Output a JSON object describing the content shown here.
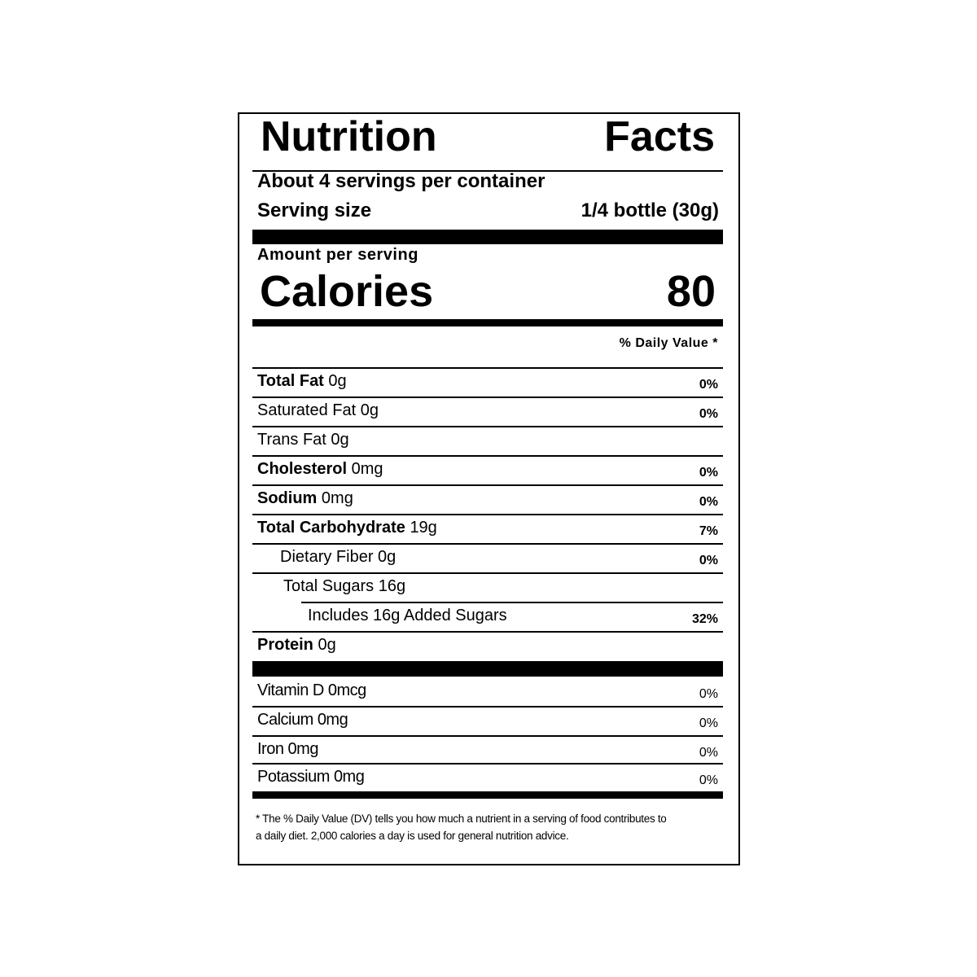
{
  "header": {
    "title_left": "Nutrition",
    "title_right": "Facts"
  },
  "servings": {
    "per_container": "About 4 servings per container",
    "size_label": "Serving size",
    "size_value": "1/4 bottle (30g)"
  },
  "calories": {
    "amount_label": "Amount per serving",
    "label": "Calories",
    "value": "80"
  },
  "dv_header": "% Daily Value *",
  "nutrients": [
    {
      "name": "Total Fat",
      "amount": "0g",
      "dv": "0%",
      "bold": true,
      "indent": 0
    },
    {
      "name": "Saturated Fat",
      "amount": "0g",
      "dv": "0%",
      "bold": false,
      "indent": 0
    },
    {
      "name": "Trans Fat",
      "amount": "0g",
      "dv": "",
      "bold": false,
      "indent": 0
    },
    {
      "name": "Cholesterol",
      "amount": "0mg",
      "dv": "0%",
      "bold": true,
      "indent": 0
    },
    {
      "name": "Sodium",
      "amount": "0mg",
      "dv": "0%",
      "bold": true,
      "indent": 0
    },
    {
      "name": "Total Carbohydrate",
      "amount": "19g",
      "dv": "7%",
      "bold": true,
      "indent": 0
    },
    {
      "name": "Dietary Fiber",
      "amount": "0g",
      "dv": "0%",
      "bold": false,
      "indent": 1
    },
    {
      "name": "Total Sugars",
      "amount": "16g",
      "dv": "",
      "bold": false,
      "indent": 1
    },
    {
      "name": "Includes 16g Added Sugars",
      "amount": "",
      "dv": "32%",
      "bold": false,
      "indent": 2
    },
    {
      "name": "Protein",
      "amount": "0g",
      "dv": "",
      "bold": true,
      "indent": 0
    }
  ],
  "vitamins": [
    {
      "name": "Vitamin D",
      "amount": "0mcg",
      "dv": "0%"
    },
    {
      "name": "Calcium",
      "amount": "0mg",
      "dv": "0%"
    },
    {
      "name": "Iron",
      "amount": "0mg",
      "dv": "0%"
    },
    {
      "name": "Potassium",
      "amount": "0mg",
      "dv": "0%"
    }
  ],
  "footnote": {
    "line1": "* The % Daily Value (DV) tells you how much a nutrient in a serving  of food contributes to",
    "line2": "a daily diet. 2,000 calories a day is used for general nutrition advice."
  }
}
